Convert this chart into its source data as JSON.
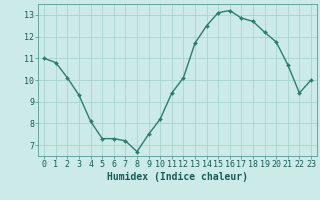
{
  "x": [
    0,
    1,
    2,
    3,
    4,
    5,
    6,
    7,
    8,
    9,
    10,
    11,
    12,
    13,
    14,
    15,
    16,
    17,
    18,
    19,
    20,
    21,
    22,
    23
  ],
  "y": [
    11.0,
    10.8,
    10.1,
    9.3,
    8.1,
    7.3,
    7.3,
    7.2,
    6.7,
    7.5,
    8.2,
    9.4,
    10.1,
    11.7,
    12.5,
    13.1,
    13.2,
    12.85,
    12.7,
    12.2,
    11.75,
    10.7,
    9.4,
    10.0
  ],
  "line_color": "#2d7d6e",
  "marker": "D",
  "marker_size": 2.0,
  "bg_color": "#cceae7",
  "grid_color": "#aad4d0",
  "xlabel": "Humidex (Indice chaleur)",
  "ylim": [
    6.5,
    13.5
  ],
  "xlim": [
    -0.5,
    23.5
  ],
  "yticks": [
    7,
    8,
    9,
    10,
    11,
    12,
    13
  ],
  "xticks": [
    0,
    1,
    2,
    3,
    4,
    5,
    6,
    7,
    8,
    9,
    10,
    11,
    12,
    13,
    14,
    15,
    16,
    17,
    18,
    19,
    20,
    21,
    22,
    23
  ],
  "tick_fontsize": 6,
  "xlabel_fontsize": 7,
  "linewidth": 1.0,
  "spine_color": "#5a9a94"
}
